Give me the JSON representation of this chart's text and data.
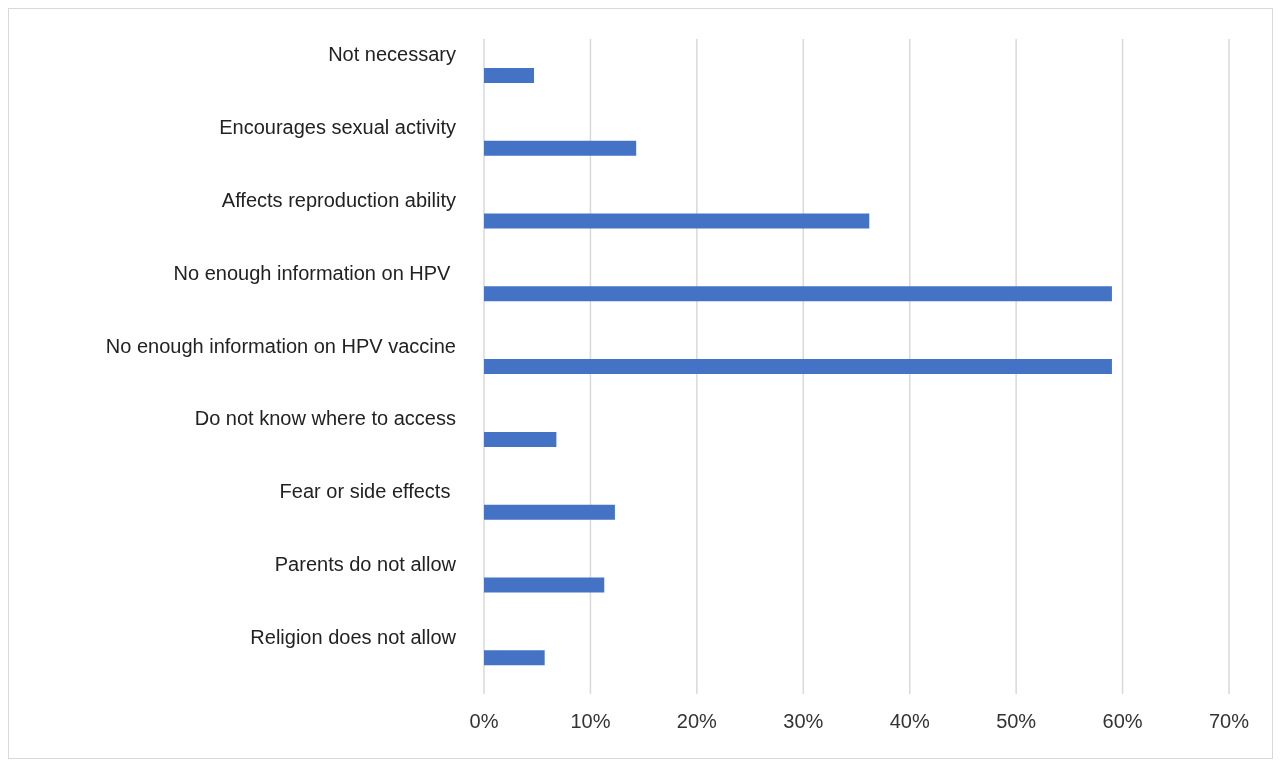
{
  "chart_data": {
    "type": "bar",
    "orientation": "horizontal",
    "categories": [
      "Not necessary",
      "Encourages sexual activity",
      "Affects reproduction ability",
      "No enough information on HPV ",
      "No enough information on HPV vaccine",
      "Do not know where to access",
      "Fear or side effects ",
      "Parents do not allow",
      "Religion does not allow"
    ],
    "values": [
      4.7,
      14.3,
      36.2,
      59.0,
      59.0,
      6.8,
      12.3,
      11.3,
      5.7
    ],
    "color": "#4472c4",
    "xlim": [
      0,
      70
    ],
    "xticks": [
      {
        "value": 0,
        "label": "0%"
      },
      {
        "value": 10,
        "label": "10%"
      },
      {
        "value": 20,
        "label": "20%"
      },
      {
        "value": 30,
        "label": "30%"
      },
      {
        "value": 40,
        "label": "40%"
      },
      {
        "value": 50,
        "label": "50%"
      },
      {
        "value": 60,
        "label": "60%"
      },
      {
        "value": 70,
        "label": "70%"
      }
    ],
    "grid": "x"
  }
}
